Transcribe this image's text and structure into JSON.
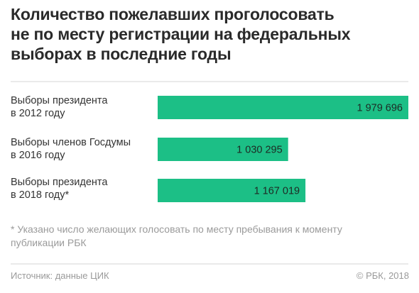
{
  "title_lines": [
    "Количество пожелавших проголосовать",
    "не по месту регистрации на федеральных",
    "выборах в последние годы"
  ],
  "chart_data": {
    "type": "bar",
    "orientation": "horizontal",
    "categories": [
      [
        "Выборы президента",
        "в 2012 году"
      ],
      [
        "Выборы членов Госдумы",
        "в 2016 году"
      ],
      [
        "Выборы президента",
        "в 2018 году*"
      ]
    ],
    "values": [
      1979696,
      1030295,
      1167019
    ],
    "value_labels": [
      "1 979 696",
      "1 030 295",
      "1 167 019"
    ],
    "xlim": [
      0,
      1979696
    ],
    "grid": false,
    "legend": false
  },
  "footnote_lines": [
    "* Указано число желающих голосовать по месту пребывания к моменту",
    "публикации РБК"
  ],
  "source": "Источник: данные ЦИК",
  "copyright": "© РБК, 2018",
  "colors": {
    "bar": "#1cbf86",
    "value_text": "#1e2a24",
    "divider": "#d6d6d6",
    "muted_text": "#9a9a9a"
  }
}
